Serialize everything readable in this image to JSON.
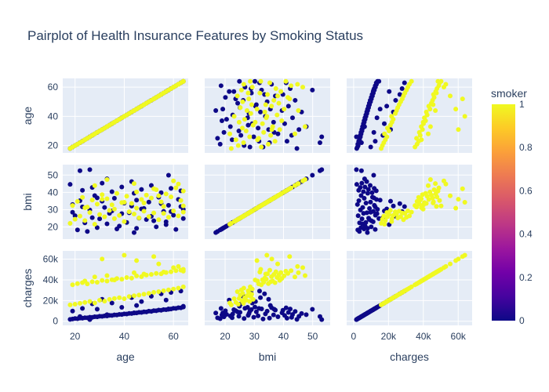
{
  "chart_data": {
    "type": "scatter",
    "subtype": "pairplot",
    "title": "Pairplot of Health Insurance Features by Smoking Status",
    "variables": [
      "age",
      "bmi",
      "charges"
    ],
    "axes": {
      "age": {
        "label": "age",
        "range": [
          15,
          66
        ],
        "ticks": [
          20,
          40,
          60
        ],
        "tick_labels": [
          "20",
          "40",
          "60"
        ]
      },
      "bmi": {
        "label": "bmi",
        "range": [
          13,
          56
        ],
        "ticks": [
          20,
          30,
          40,
          50
        ],
        "tick_labels": [
          "20",
          "30",
          "40",
          "50"
        ]
      },
      "charges": {
        "label": "charges",
        "range": [
          -4000,
          68000
        ],
        "ticks": [
          0,
          20000,
          40000,
          60000
        ],
        "tick_labels": [
          "0",
          "20k",
          "40k",
          "60k"
        ]
      }
    },
    "color_variable": "smoker",
    "colorbar": {
      "title": "smoker",
      "range": [
        0,
        1
      ],
      "ticks": [
        0,
        0.2,
        0.4,
        0.6,
        0.8,
        1
      ],
      "tick_labels": [
        "0",
        "0.2",
        "0.4",
        "0.6",
        "0.8",
        "1"
      ],
      "colorscale": [
        "#0d0887",
        "#46039f",
        "#7201a8",
        "#9c179e",
        "#bd3786",
        "#d8576b",
        "#ed7953",
        "#fb9f3a",
        "#fdca26",
        "#f0f921"
      ]
    },
    "grid": true,
    "legend_position": "right",
    "series": [
      {
        "name": "0",
        "color": "#0d0887",
        "points": [
          [
            19,
            33.0,
            2200
          ],
          [
            20,
            26.5,
            2600
          ],
          [
            22,
            35.2,
            3000
          ],
          [
            24,
            22.4,
            3400
          ],
          [
            26,
            29.8,
            3900
          ],
          [
            28,
            38.1,
            4300
          ],
          [
            30,
            24.7,
            4800
          ],
          [
            32,
            31.3,
            5200
          ],
          [
            34,
            27.9,
            5700
          ],
          [
            36,
            36.6,
            6100
          ],
          [
            38,
            20.5,
            6600
          ],
          [
            40,
            33.8,
            7100
          ],
          [
            42,
            28.2,
            7600
          ],
          [
            44,
            39.5,
            8100
          ],
          [
            46,
            25.1,
            8600
          ],
          [
            48,
            30.7,
            9100
          ],
          [
            50,
            34.4,
            9700
          ],
          [
            52,
            23.6,
            10200
          ],
          [
            54,
            37.2,
            10800
          ],
          [
            56,
            29.0,
            11300
          ],
          [
            58,
            32.5,
            11900
          ],
          [
            60,
            26.8,
            12500
          ],
          [
            62,
            35.9,
            13100
          ],
          [
            64,
            30.2,
            13700
          ],
          [
            18,
            44.6,
            1800
          ],
          [
            21,
            18.3,
            2400
          ],
          [
            23,
            41.2,
            2900
          ],
          [
            25,
            17.4,
            3300
          ],
          [
            27,
            42.8,
            3800
          ],
          [
            29,
            19.6,
            4200
          ],
          [
            31,
            45.3,
            4700
          ],
          [
            33,
            21.8,
            5100
          ],
          [
            35,
            40.4,
            5600
          ],
          [
            37,
            18.9,
            6000
          ],
          [
            39,
            43.1,
            6500
          ],
          [
            41,
            22.6,
            7000
          ],
          [
            43,
            46.2,
            7500
          ],
          [
            45,
            19.2,
            8000
          ],
          [
            47,
            41.7,
            8500
          ],
          [
            49,
            24.3,
            9000
          ],
          [
            51,
            44.0,
            9500
          ],
          [
            53,
            20.1,
            10100
          ],
          [
            55,
            39.8,
            10600
          ],
          [
            57,
            23.0,
            11200
          ],
          [
            59,
            42.3,
            11800
          ],
          [
            61,
            18.6,
            12400
          ],
          [
            63,
            40.9,
            13000
          ],
          [
            64,
            24.9,
            14500
          ],
          [
            19,
            28.5,
            9800
          ],
          [
            23,
            31.6,
            12400
          ],
          [
            27,
            25.4,
            16800
          ],
          [
            31,
            34.9,
            21200
          ],
          [
            35,
            29.3,
            17600
          ],
          [
            39,
            27.7,
            13400
          ],
          [
            43,
            32.1,
            22800
          ],
          [
            47,
            30.4,
            19000
          ],
          [
            51,
            26.2,
            24100
          ],
          [
            55,
            33.5,
            26500
          ],
          [
            59,
            28.9,
            27800
          ],
          [
            63,
            31.8,
            29200
          ],
          [
            29,
            36.8,
            11600
          ],
          [
            45,
            35.5,
            15200
          ],
          [
            57,
            21.4,
            20400
          ],
          [
            22,
            52.5,
            4500
          ],
          [
            58,
            49.9,
            11500
          ],
          [
            33,
            47.8,
            6300
          ],
          [
            44,
            16.8,
            7900
          ],
          [
            26,
            53.1,
            1600
          ]
        ]
      },
      {
        "name": "1",
        "color": "#f0f921",
        "points": [
          [
            18,
            22.1,
            15800
          ],
          [
            20,
            24.5,
            16500
          ],
          [
            22,
            26.3,
            17300
          ],
          [
            24,
            23.7,
            18200
          ],
          [
            26,
            28.4,
            19100
          ],
          [
            28,
            21.6,
            17700
          ],
          [
            30,
            27.2,
            20300
          ],
          [
            32,
            25.9,
            19400
          ],
          [
            34,
            29.6,
            21100
          ],
          [
            36,
            24.8,
            22000
          ],
          [
            38,
            26.7,
            22700
          ],
          [
            40,
            23.1,
            21800
          ],
          [
            42,
            28.8,
            23900
          ],
          [
            44,
            27.5,
            24600
          ],
          [
            46,
            25.2,
            25300
          ],
          [
            48,
            29.1,
            26100
          ],
          [
            50,
            26.0,
            27000
          ],
          [
            52,
            28.1,
            27900
          ],
          [
            54,
            24.2,
            28600
          ],
          [
            56,
            27.9,
            29400
          ],
          [
            58,
            25.6,
            30300
          ],
          [
            60,
            29.3,
            31100
          ],
          [
            62,
            26.4,
            32000
          ],
          [
            64,
            28.6,
            33200
          ],
          [
            19,
            32.4,
            35200
          ],
          [
            21,
            34.8,
            36400
          ],
          [
            23,
            37.1,
            37300
          ],
          [
            25,
            31.5,
            36100
          ],
          [
            27,
            35.6,
            38200
          ],
          [
            29,
            33.2,
            37700
          ],
          [
            31,
            38.7,
            39500
          ],
          [
            33,
            36.3,
            38800
          ],
          [
            35,
            32.8,
            40100
          ],
          [
            37,
            39.4,
            41300
          ],
          [
            39,
            34.1,
            40600
          ],
          [
            41,
            37.8,
            42200
          ],
          [
            43,
            33.6,
            41700
          ],
          [
            45,
            40.2,
            43800
          ],
          [
            47,
            35.9,
            43100
          ],
          [
            49,
            38.4,
            44600
          ],
          [
            51,
            36.7,
            45300
          ],
          [
            53,
            41.5,
            46200
          ],
          [
            55,
            34.5,
            45800
          ],
          [
            57,
            39.1,
            47100
          ],
          [
            59,
            37.4,
            47800
          ],
          [
            61,
            42.6,
            48900
          ],
          [
            63,
            35.3,
            49300
          ],
          [
            64,
            40.8,
            48400
          ],
          [
            28,
            43.9,
            42800
          ],
          [
            44,
            45.1,
            46900
          ],
          [
            52,
            42.1,
            62500
          ],
          [
            33,
            47.4,
            44100
          ],
          [
            60,
            46.6,
            51800
          ],
          [
            45,
            30.9,
            58600
          ],
          [
            54,
            38.0,
            55400
          ],
          [
            31,
            36.0,
            60100
          ],
          [
            62,
            44.8,
            52900
          ],
          [
            40,
            34.3,
            63800
          ],
          [
            24,
            31.1,
            38900
          ],
          [
            36,
            30.3,
            39900
          ],
          [
            48,
            33.9,
            45600
          ],
          [
            56,
            31.9,
            47500
          ],
          [
            64,
            32.2,
            50200
          ]
        ]
      }
    ]
  }
}
